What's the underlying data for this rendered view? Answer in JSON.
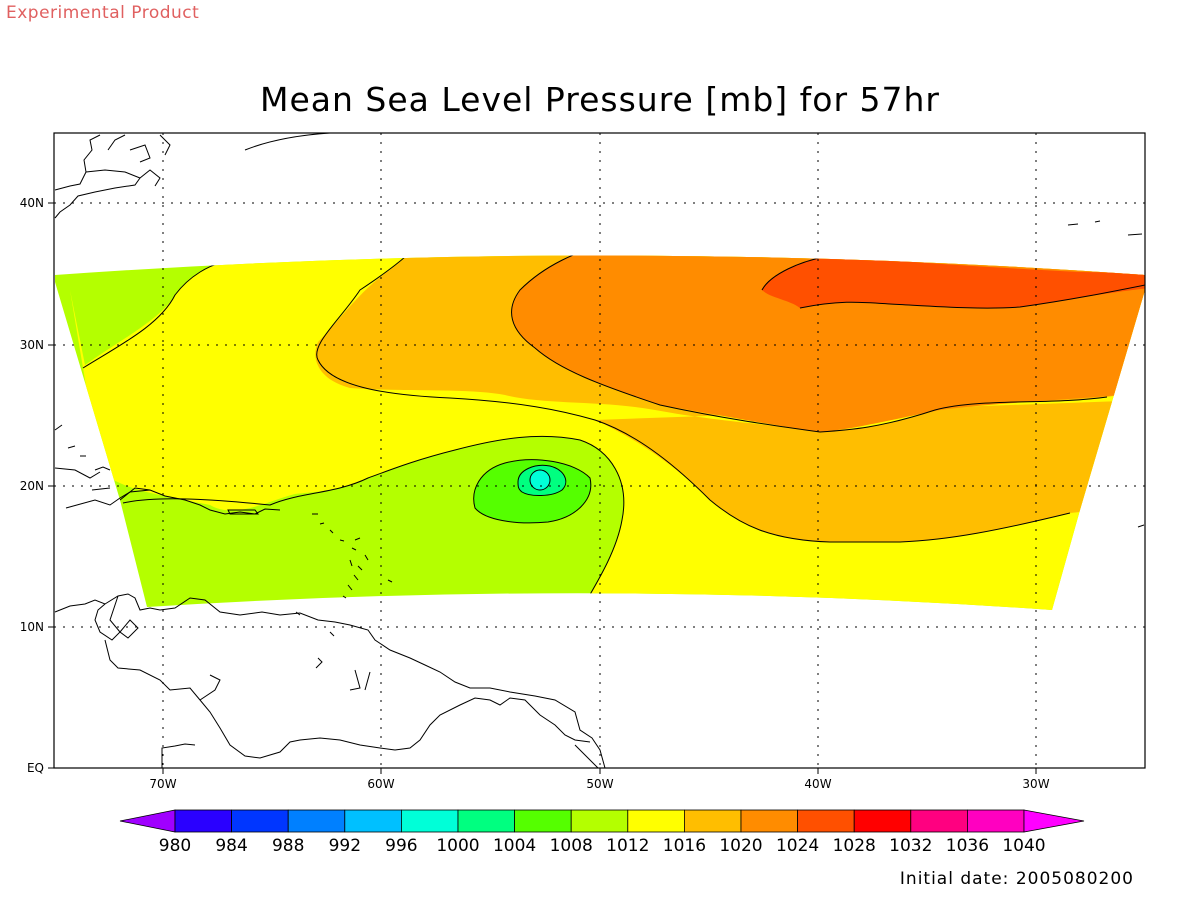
{
  "header": {
    "product_note": "Experimental Product",
    "title": "Mean Sea Level Pressure [mb] for 57hr"
  },
  "map": {
    "variable": "Mean Sea Level Pressure",
    "units": "mb",
    "forecast_hour": "57hr",
    "lon_labels": [
      "70W",
      "60W",
      "50W",
      "40W",
      "30W"
    ],
    "lat_labels": [
      "EQ",
      "10N",
      "20N",
      "30N",
      "40N"
    ],
    "low_center": {
      "lon": -52.8,
      "lat": 20.3,
      "pressure_range": "996-1000"
    },
    "high_region": {
      "pressure_range": "1024-1028",
      "location": "NE of domain"
    },
    "grid": "dotted"
  },
  "colorbar": {
    "levels": [
      "980",
      "984",
      "988",
      "992",
      "996",
      "1000",
      "1004",
      "1008",
      "1012",
      "1016",
      "1020",
      "1024",
      "1028",
      "1032",
      "1036",
      "1040"
    ],
    "colors": [
      "#a000ff",
      "#2a00ff",
      "#0036ff",
      "#0080ff",
      "#00c0ff",
      "#00ffd8",
      "#00ff80",
      "#55ff00",
      "#b4ff00",
      "#ffff00",
      "#ffbe00",
      "#ff8c00",
      "#ff5000",
      "#ff0000",
      "#ff0080",
      "#ff00c0",
      "#ff00ff"
    ]
  },
  "footer": {
    "init_label": "Initial date:",
    "init_value": "2005080200"
  }
}
